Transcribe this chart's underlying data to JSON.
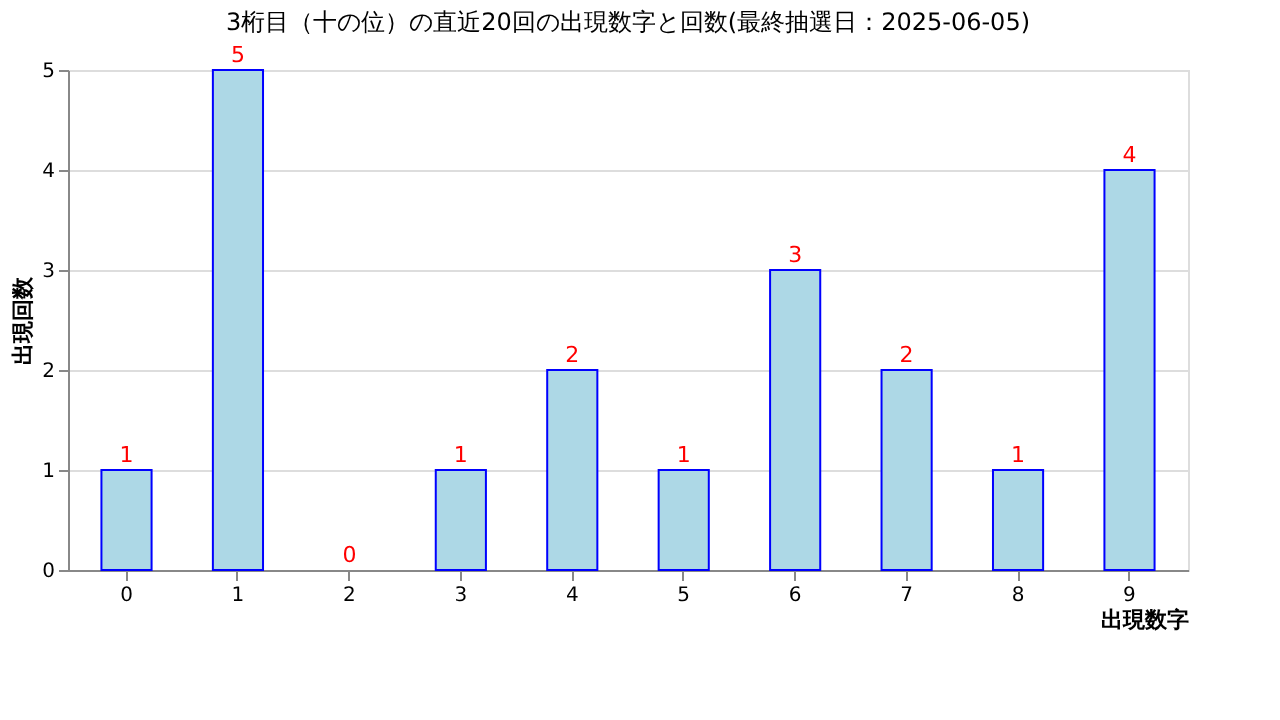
{
  "chart_data": {
    "type": "bar",
    "title": "3桁目（十の位）の直近20回の出現数字と回数(最終抽選日：2025-06-05)",
    "xlabel": "出現数字",
    "ylabel": "出現回数",
    "categories": [
      "0",
      "1",
      "2",
      "3",
      "4",
      "5",
      "6",
      "7",
      "8",
      "9"
    ],
    "values": [
      1,
      5,
      0,
      1,
      2,
      1,
      3,
      2,
      1,
      4
    ],
    "color": "#add8e6",
    "ylim": [
      0,
      5
    ],
    "yticks": [
      0,
      1,
      2,
      3,
      4,
      5
    ],
    "grid": "y",
    "data_labels": true
  }
}
